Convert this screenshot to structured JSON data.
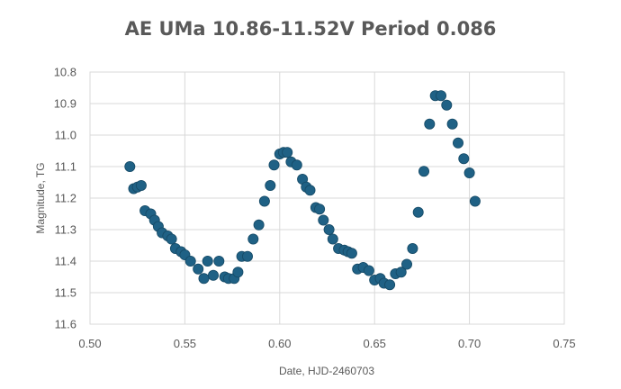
{
  "chart_data": {
    "type": "scatter",
    "title": "AE UMa 10.86-11.52V Period 0.086",
    "xlabel": "Date, HJD-2460703",
    "ylabel": "Magnitude, TG",
    "xlim": [
      0.5,
      0.75
    ],
    "ylim": [
      10.8,
      11.6
    ],
    "y_inverted": true,
    "grid": true,
    "x_ticks": [
      "0.50",
      "0.55",
      "0.60",
      "0.65",
      "0.70",
      "0.75"
    ],
    "y_ticks": [
      "10.8",
      "10.9",
      "11.0",
      "11.1",
      "11.2",
      "11.3",
      "11.4",
      "11.5",
      "11.6"
    ],
    "marker_color": "#1f6185",
    "points": [
      [
        0.521,
        11.1
      ],
      [
        0.523,
        11.17
      ],
      [
        0.525,
        11.165
      ],
      [
        0.527,
        11.16
      ],
      [
        0.529,
        11.24
      ],
      [
        0.532,
        11.25
      ],
      [
        0.534,
        11.27
      ],
      [
        0.536,
        11.29
      ],
      [
        0.538,
        11.31
      ],
      [
        0.541,
        11.32
      ],
      [
        0.543,
        11.33
      ],
      [
        0.545,
        11.36
      ],
      [
        0.548,
        11.37
      ],
      [
        0.55,
        11.38
      ],
      [
        0.553,
        11.4
      ],
      [
        0.557,
        11.425
      ],
      [
        0.56,
        11.455
      ],
      [
        0.562,
        11.4
      ],
      [
        0.565,
        11.445
      ],
      [
        0.568,
        11.4
      ],
      [
        0.571,
        11.45
      ],
      [
        0.573,
        11.455
      ],
      [
        0.576,
        11.455
      ],
      [
        0.578,
        11.435
      ],
      [
        0.58,
        11.385
      ],
      [
        0.583,
        11.385
      ],
      [
        0.586,
        11.33
      ],
      [
        0.589,
        11.285
      ],
      [
        0.592,
        11.21
      ],
      [
        0.595,
        11.16
      ],
      [
        0.597,
        11.095
      ],
      [
        0.6,
        11.06
      ],
      [
        0.602,
        11.055
      ],
      [
        0.604,
        11.055
      ],
      [
        0.606,
        11.085
      ],
      [
        0.609,
        11.095
      ],
      [
        0.612,
        11.14
      ],
      [
        0.614,
        11.165
      ],
      [
        0.616,
        11.175
      ],
      [
        0.619,
        11.23
      ],
      [
        0.621,
        11.235
      ],
      [
        0.623,
        11.27
      ],
      [
        0.626,
        11.3
      ],
      [
        0.628,
        11.33
      ],
      [
        0.631,
        11.36
      ],
      [
        0.634,
        11.365
      ],
      [
        0.636,
        11.37
      ],
      [
        0.638,
        11.375
      ],
      [
        0.641,
        11.425
      ],
      [
        0.644,
        11.42
      ],
      [
        0.647,
        11.43
      ],
      [
        0.65,
        11.46
      ],
      [
        0.653,
        11.455
      ],
      [
        0.655,
        11.47
      ],
      [
        0.658,
        11.475
      ],
      [
        0.661,
        11.44
      ],
      [
        0.664,
        11.435
      ],
      [
        0.667,
        11.41
      ],
      [
        0.67,
        11.36
      ],
      [
        0.673,
        11.245
      ],
      [
        0.676,
        11.115
      ],
      [
        0.679,
        10.965
      ],
      [
        0.682,
        10.875
      ],
      [
        0.685,
        10.875
      ],
      [
        0.688,
        10.905
      ],
      [
        0.691,
        10.965
      ],
      [
        0.694,
        11.025
      ],
      [
        0.697,
        11.075
      ],
      [
        0.7,
        11.12
      ],
      [
        0.703,
        11.21
      ]
    ]
  }
}
